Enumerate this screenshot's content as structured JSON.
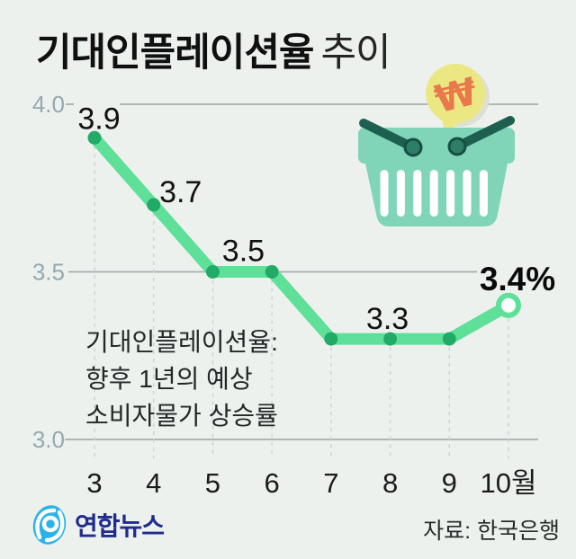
{
  "title": {
    "main": "기대인플레이션율",
    "suffix": "추이"
  },
  "annotation": {
    "lines": [
      "기대인플레이션율:",
      "향후 1년의 예상",
      "소비자물가 상승률"
    ]
  },
  "footer": {
    "logo_text": "연합뉴스",
    "source": "자료: 한국은행"
  },
  "illustration": {
    "name": "shopping-basket-with-won-speech-bubble",
    "bubble_symbol": "₩",
    "colors": {
      "basket": "#80d5b9",
      "handle": "#1d6050",
      "knob": "#2c7e66",
      "bubble": "#ebe884",
      "won": "#e8794b",
      "stripe": "#ffffff"
    }
  },
  "chart_data": {
    "type": "line",
    "title": "기대인플레이션율 추이",
    "x": [
      3,
      4,
      5,
      6,
      7,
      8,
      9,
      10
    ],
    "x_tick_labels": [
      "3",
      "4",
      "5",
      "6",
      "7",
      "8",
      "9",
      "10월"
    ],
    "values": [
      3.9,
      3.7,
      3.5,
      3.5,
      3.3,
      3.3,
      3.3,
      3.4
    ],
    "unit": "%",
    "yticks": [
      4.0,
      3.5,
      3.0
    ],
    "ytick_labels": [
      "4.0",
      "3.5",
      "3.0"
    ],
    "ylim": [
      3.0,
      4.0
    ],
    "grid": "horizontal solid + vertical dashed",
    "legend": "none",
    "last_point_style": "open-circle",
    "point_labels": [
      {
        "month": 3,
        "text": "3.9"
      },
      {
        "month": 4,
        "text": "3.7"
      },
      {
        "month": 5,
        "text": "3.5"
      },
      {
        "month": 8,
        "text": "3.3"
      },
      {
        "month": 10,
        "text": "3.4%",
        "emphasis": true
      }
    ],
    "colors": {
      "line": "#5ee098",
      "dot": "#22ab66",
      "grid": "#a4aeb1",
      "dash": "#c9d5d9",
      "tick_text": "#94a8b0"
    }
  }
}
